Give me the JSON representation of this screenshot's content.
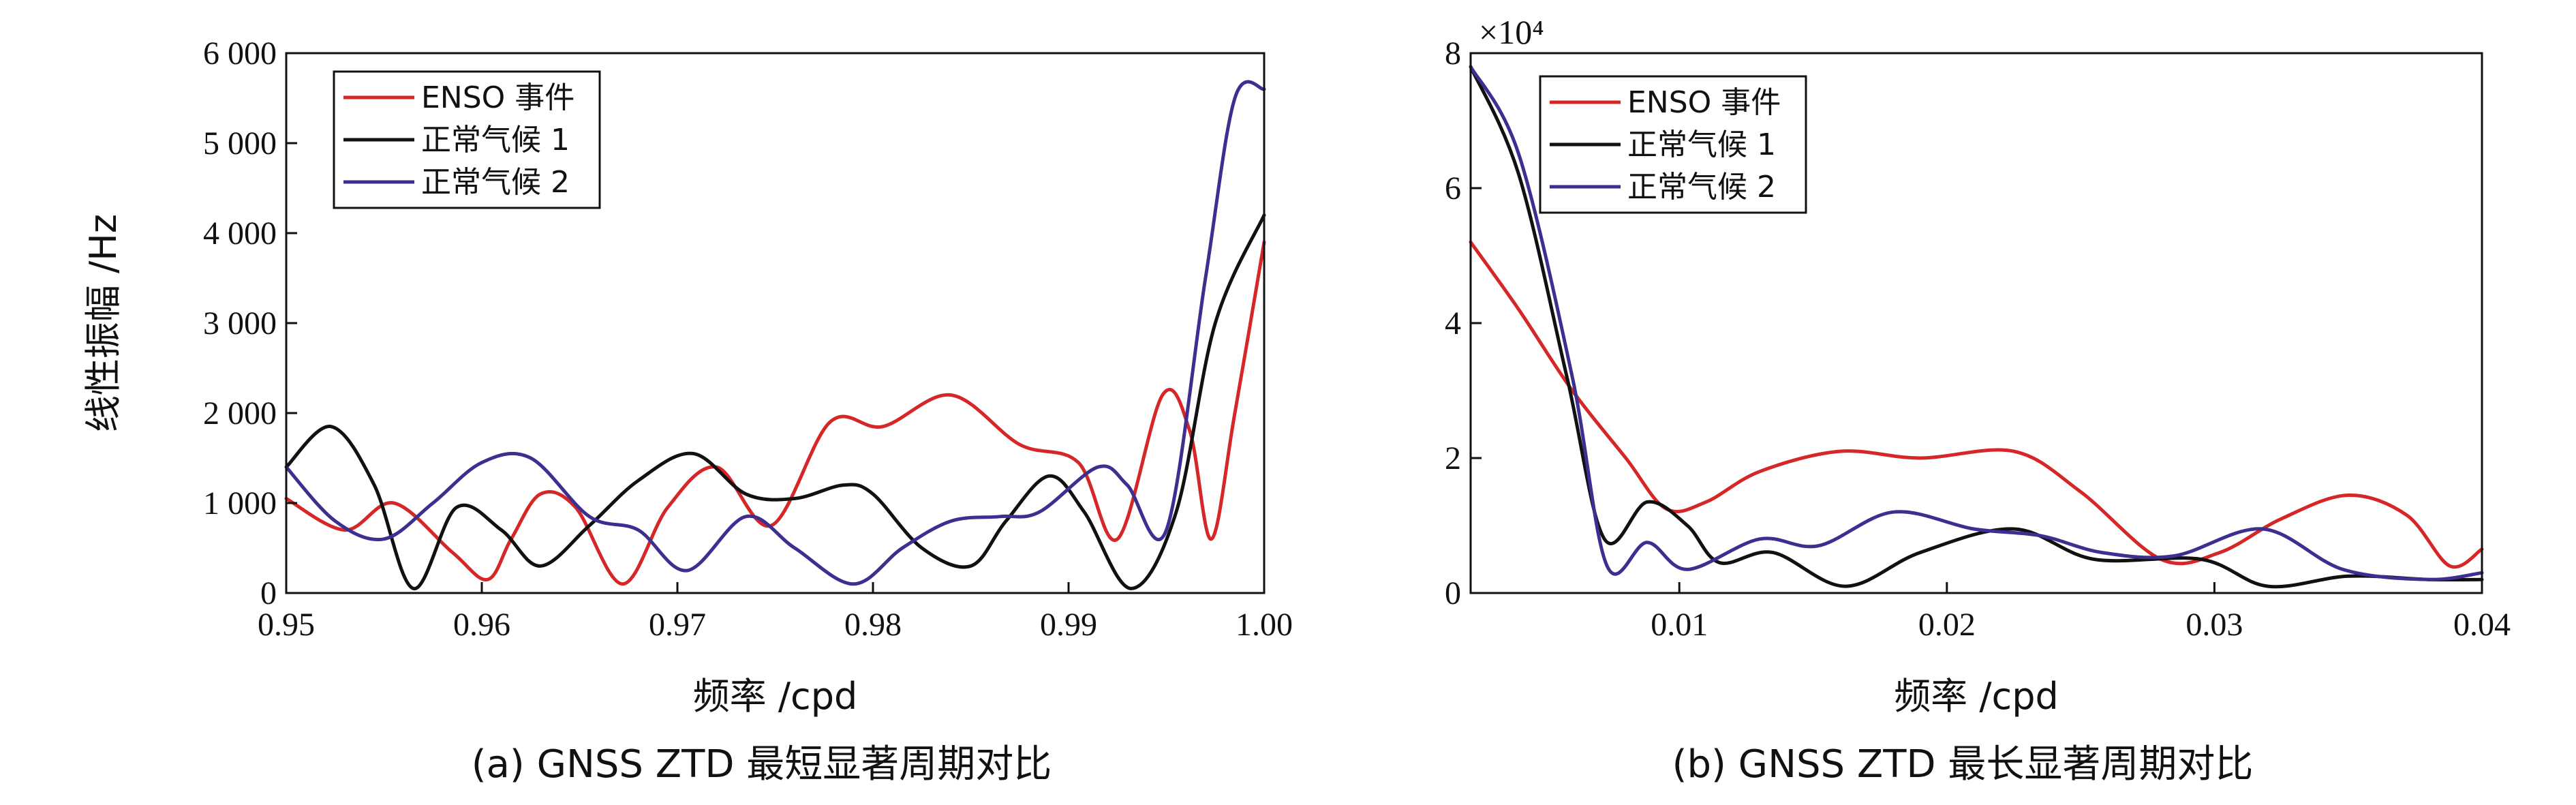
{
  "chart_data": [
    {
      "type": "line",
      "xlabel": "频率 /cpd",
      "ylabel": "线性振幅 /Hz",
      "caption": "(a) GNSS ZTD 最短显著周期对比",
      "xlim": [
        0.95,
        1.0
      ],
      "ylim": [
        0,
        6000
      ],
      "xticks": [
        0.95,
        0.96,
        0.97,
        0.98,
        0.99,
        1.0
      ],
      "xtick_labels": [
        "0.95",
        "0.96",
        "0.97",
        "0.98",
        "0.99",
        "1.00"
      ],
      "yticks": [
        0,
        1000,
        2000,
        3000,
        4000,
        5000,
        6000
      ],
      "ytick_labels": [
        "0",
        "1 000",
        "2 000",
        "3 000",
        "4 000",
        "5 000",
        "6 000"
      ],
      "legend_position": "top-left",
      "series": [
        {
          "name": "ENSO 事件",
          "color": "#d62728",
          "x": [
            0.95,
            0.953,
            0.9555,
            0.9585,
            0.9603,
            0.9615,
            0.963,
            0.9648,
            0.9672,
            0.9695,
            0.972,
            0.9748,
            0.9778,
            0.9805,
            0.984,
            0.9875,
            0.9905,
            0.9925,
            0.9948,
            0.9962,
            0.9973,
            0.9985,
            1.0
          ],
          "y": [
            1050,
            700,
            1000,
            450,
            150,
            600,
            1100,
            950,
            100,
            950,
            1400,
            750,
            1900,
            1850,
            2200,
            1650,
            1450,
            600,
            2200,
            1800,
            600,
            2000,
            3900
          ]
        },
        {
          "name": "正常气候 1",
          "color": "#111111",
          "x": [
            0.95,
            0.9523,
            0.9545,
            0.9565,
            0.9587,
            0.961,
            0.963,
            0.9655,
            0.968,
            0.9708,
            0.9735,
            0.976,
            0.9785,
            0.98,
            0.9825,
            0.985,
            0.9868,
            0.989,
            0.9908,
            0.9932,
            0.9955,
            0.9975,
            1.0
          ],
          "y": [
            1400,
            1850,
            1200,
            50,
            950,
            700,
            300,
            750,
            1250,
            1550,
            1100,
            1050,
            1200,
            1100,
            500,
            300,
            800,
            1300,
            900,
            50,
            900,
            3000,
            4200
          ]
        },
        {
          "name": "正常气候 2",
          "color": "#3c2f8f",
          "x": [
            0.95,
            0.9525,
            0.955,
            0.9575,
            0.96,
            0.9625,
            0.9655,
            0.968,
            0.9705,
            0.9735,
            0.976,
            0.979,
            0.9815,
            0.984,
            0.9865,
            0.9885,
            0.9915,
            0.993,
            0.995,
            0.997,
            0.9985,
            1.0
          ],
          "y": [
            1400,
            800,
            600,
            1000,
            1450,
            1500,
            850,
            700,
            250,
            850,
            500,
            100,
            500,
            800,
            850,
            900,
            1400,
            1200,
            700,
            3500,
            5500,
            5600
          ]
        }
      ]
    },
    {
      "type": "line",
      "xlabel": "频率 /cpd",
      "ylabel": "",
      "caption": "(b) GNSS ZTD 最长显著周期对比",
      "exponent": "×10⁴",
      "xlim": [
        0.0022,
        0.04
      ],
      "ylim": [
        0,
        8
      ],
      "xticks": [
        0.01,
        0.02,
        0.03,
        0.04
      ],
      "xtick_labels": [
        "0.01",
        "0.02",
        "0.03",
        "0.04"
      ],
      "yticks": [
        0,
        2,
        4,
        6,
        8
      ],
      "ytick_labels": [
        "0",
        "2",
        "4",
        "6",
        "8"
      ],
      "legend_position": "top-right",
      "series": [
        {
          "name": "ENSO 事件",
          "color": "#d62728",
          "x": [
            0.0022,
            0.004,
            0.006,
            0.008,
            0.0095,
            0.011,
            0.013,
            0.016,
            0.019,
            0.0225,
            0.025,
            0.028,
            0.0302,
            0.0325,
            0.035,
            0.0372,
            0.0388,
            0.04
          ],
          "y": [
            5.2,
            4.2,
            3.0,
            2.0,
            1.25,
            1.35,
            1.8,
            2.1,
            2.0,
            2.1,
            1.5,
            0.5,
            0.6,
            1.1,
            1.45,
            1.15,
            0.4,
            0.65
          ]
        },
        {
          "name": "正常气候 1",
          "color": "#111111",
          "x": [
            0.0022,
            0.004,
            0.0058,
            0.0072,
            0.0088,
            0.0103,
            0.0115,
            0.0135,
            0.0162,
            0.019,
            0.0225,
            0.0255,
            0.0295,
            0.032,
            0.035,
            0.038,
            0.04
          ],
          "y": [
            7.8,
            6.2,
            3.2,
            0.8,
            1.35,
            1.0,
            0.45,
            0.6,
            0.1,
            0.6,
            0.95,
            0.5,
            0.5,
            0.1,
            0.25,
            0.2,
            0.2
          ]
        },
        {
          "name": "正常气候 2",
          "color": "#3c2f8f",
          "x": [
            0.0022,
            0.004,
            0.006,
            0.0073,
            0.0088,
            0.0103,
            0.013,
            0.0152,
            0.018,
            0.021,
            0.0235,
            0.0258,
            0.0285,
            0.0318,
            0.0348,
            0.038,
            0.04
          ],
          "y": [
            7.8,
            6.5,
            3.2,
            0.4,
            0.75,
            0.35,
            0.8,
            0.7,
            1.2,
            0.95,
            0.85,
            0.6,
            0.55,
            0.95,
            0.35,
            0.2,
            0.3
          ]
        }
      ]
    }
  ]
}
